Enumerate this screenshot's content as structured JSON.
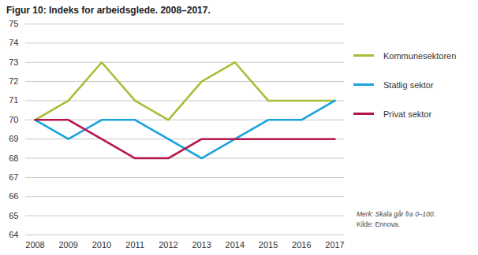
{
  "chart_data": {
    "type": "line",
    "title": "Figur 10: Indeks for arbeidsglede. 2008–2017.",
    "x": [
      2008,
      2009,
      2010,
      2011,
      2012,
      2013,
      2014,
      2015,
      2016,
      2017
    ],
    "series": [
      {
        "name": "Kommunesektoren",
        "color": "#a9bd38",
        "values": [
          70,
          71,
          73,
          71,
          70,
          72,
          73,
          71,
          71,
          71
        ]
      },
      {
        "name": "Statlig sektor",
        "color": "#1aa3dd",
        "values": [
          70,
          69,
          70,
          70,
          69,
          68,
          69,
          70,
          70,
          71
        ]
      },
      {
        "name": "Privat sektor",
        "color": "#b3174d",
        "values": [
          70,
          70,
          69,
          68,
          68,
          69,
          69,
          69,
          69,
          69
        ]
      }
    ],
    "xlim": [
      2008,
      2017
    ],
    "xticks": [
      2008,
      2009,
      2010,
      2011,
      2012,
      2013,
      2014,
      2015,
      2016,
      2017
    ],
    "ylim": [
      64,
      75
    ],
    "yticks": [
      64,
      65,
      66,
      67,
      68,
      69,
      70,
      71,
      72,
      73,
      74,
      75
    ],
    "grid": true,
    "legend": "right",
    "annotations": [
      "Merk: Skala går fra 0–100.",
      "Kilde: Ennova."
    ]
  }
}
